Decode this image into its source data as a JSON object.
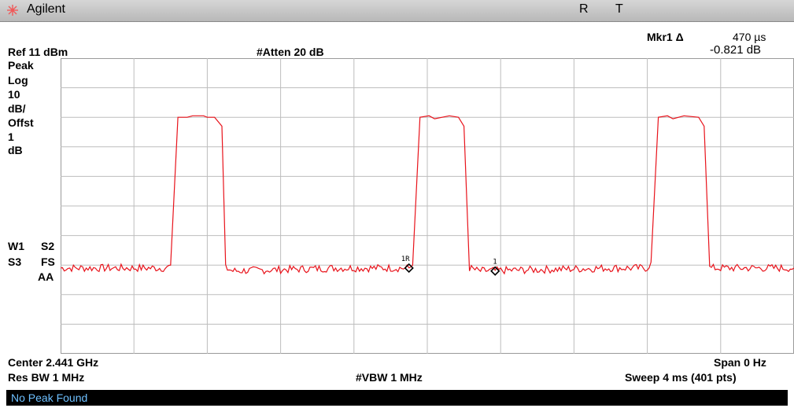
{
  "window": {
    "brand": "Agilent",
    "indicator_r": "R",
    "indicator_t": "T"
  },
  "marker": {
    "label": "Mkr1 Δ",
    "time": "470 µs",
    "delta": "-0.821 dB"
  },
  "header": {
    "ref_level": "Ref 11 dBm",
    "attenuation": "#Atten 20 dB"
  },
  "side_panel": {
    "detector": "Peak",
    "scale_type": "Log",
    "scale_value": "10",
    "scale_unit": "dB/",
    "offset_label": "Offst",
    "offset_value": "1",
    "offset_unit": "dB",
    "trace_w1": "W1",
    "trace_s2": "S2",
    "trace_s3": "S3",
    "trace_fs": "FS",
    "trace_aa": "AA"
  },
  "footer": {
    "center": "Center 2.441 GHz",
    "span": "Span 0 Hz",
    "res_bw": "Res BW 1 MHz",
    "vbw": "#VBW 1 MHz",
    "sweep": "Sweep 4 ms (401 pts)"
  },
  "status": {
    "message": "No Peak Found"
  },
  "markers": {
    "m1r_label": "1R",
    "m1_label": "1"
  },
  "colors": {
    "trace": "#e8131b",
    "grid": "#bdbdbd",
    "status_bg": "#000000",
    "status_text": "#6ec0ff",
    "logo": "#f05a5a"
  },
  "chart_data": {
    "type": "line",
    "title": "",
    "xlabel": "",
    "ylabel": "",
    "x_unit": "ms",
    "y_unit": "dBm",
    "xlim": [
      0,
      4
    ],
    "ylim": [
      -89,
      11
    ],
    "grid": true,
    "divisions": {
      "x": 10,
      "y": 10
    },
    "series": [
      {
        "points": [
          [
            0.0,
            -60
          ],
          [
            0.58,
            -60
          ],
          [
            0.6,
            -59
          ],
          [
            0.64,
            -9
          ],
          [
            0.69,
            -9
          ],
          [
            0.72,
            -8.5
          ],
          [
            0.78,
            -8.5
          ],
          [
            0.8,
            -9
          ],
          [
            0.84,
            -9
          ],
          [
            0.88,
            -12
          ],
          [
            0.9,
            -60
          ],
          [
            0.94,
            -61
          ],
          [
            1.5,
            -60
          ],
          [
            1.9,
            -60
          ],
          [
            1.92,
            -59
          ],
          [
            1.96,
            -9
          ],
          [
            2.01,
            -8.5
          ],
          [
            2.04,
            -9.5
          ],
          [
            2.12,
            -8.5
          ],
          [
            2.17,
            -9
          ],
          [
            2.2,
            -12
          ],
          [
            2.23,
            -60
          ],
          [
            2.28,
            -61
          ],
          [
            3.0,
            -60
          ],
          [
            3.2,
            -60
          ],
          [
            3.22,
            -58
          ],
          [
            3.26,
            -9
          ],
          [
            3.31,
            -8.5
          ],
          [
            3.34,
            -9.5
          ],
          [
            3.4,
            -8.5
          ],
          [
            3.48,
            -9
          ],
          [
            3.51,
            -12
          ],
          [
            3.54,
            -60
          ],
          [
            3.6,
            -60
          ],
          [
            4.0,
            -60
          ]
        ]
      }
    ],
    "markers": [
      {
        "label": "1R",
        "x": 1.9,
        "y": -60
      },
      {
        "label": "1",
        "x": 2.37,
        "y": -61
      }
    ]
  }
}
